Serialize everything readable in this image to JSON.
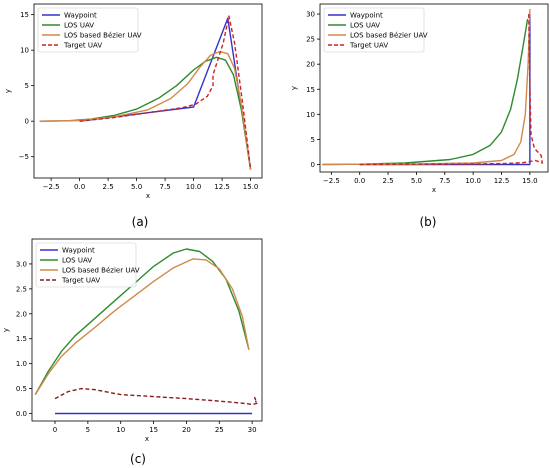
{
  "figure": {
    "subplot_labels": [
      "(a)",
      "(b)",
      "(c)"
    ]
  },
  "chart_data": [
    {
      "type": "line",
      "panel_label": "(a)",
      "xlabel": "x",
      "ylabel": "y",
      "xlim": [
        -4,
        16
      ],
      "ylim": [
        -8,
        16.5
      ],
      "xticks": [
        -2.5,
        0.0,
        2.5,
        5.0,
        7.5,
        10.0,
        12.5,
        15.0
      ],
      "xtick_labels": [
        "−2.5",
        "0.0",
        "2.5",
        "5.0",
        "7.5",
        "10.0",
        "12.5",
        "15.0"
      ],
      "yticks": [
        -5,
        0,
        5,
        10,
        15
      ],
      "ytick_labels": [
        "−5",
        "0",
        "5",
        "10",
        "15"
      ],
      "legend_position": "top-left",
      "grid": false,
      "series": [
        {
          "name": "Waypoint",
          "color": "#3333cc",
          "style": "solid",
          "x": [
            0,
            10,
            13,
            15
          ],
          "y": [
            0,
            2,
            14.5,
            -6.8
          ]
        },
        {
          "name": "LOS UAV",
          "color": "#2e8b2e",
          "style": "solid",
          "x": [
            -3.5,
            -1,
            1,
            3,
            5,
            7,
            8.5,
            10,
            11,
            12,
            12.8,
            13.5,
            14.2,
            15
          ],
          "y": [
            0,
            0.05,
            0.3,
            0.8,
            1.7,
            3.3,
            5,
            7.2,
            8.4,
            9,
            8.6,
            6.5,
            1.5,
            -6.8
          ]
        },
        {
          "name": "LOS based Bézier UAV",
          "color": "#d08a4a",
          "style": "solid",
          "x": [
            -3.5,
            0,
            3,
            6,
            8,
            9.5,
            10.5,
            11.5,
            12.3,
            13,
            13.6,
            14.2,
            15
          ],
          "y": [
            0,
            0.1,
            0.6,
            1.6,
            3.2,
            5.3,
            7.5,
            9.3,
            9.8,
            9.5,
            7.4,
            2.2,
            -6.8
          ]
        },
        {
          "name": "Target UAV",
          "color": "#cc2222",
          "style": "dashed",
          "x": [
            0,
            3,
            6,
            9,
            10.2,
            11.2,
            11.7,
            11.7,
            12.1,
            12.6,
            13.1,
            13.6,
            14.3,
            15
          ],
          "y": [
            0,
            0.5,
            1.2,
            1.9,
            2.4,
            3.5,
            5,
            6.5,
            8.5,
            11,
            14.8,
            11,
            2.5,
            -6.8
          ]
        }
      ]
    },
    {
      "type": "line",
      "panel_label": "(b)",
      "xlabel": "x",
      "ylabel": "y",
      "xlim": [
        -3.5,
        16.6
      ],
      "ylim": [
        -1.5,
        32
      ],
      "xticks": [
        -2.5,
        0.0,
        2.5,
        5.0,
        7.5,
        10.0,
        12.5,
        15.0
      ],
      "xtick_labels": [
        "−2.5",
        "0.0",
        "2.5",
        "5.0",
        "7.5",
        "10.0",
        "12.5",
        "15.0"
      ],
      "yticks": [
        0,
        5,
        10,
        15,
        20,
        25,
        30
      ],
      "ytick_labels": [
        "0",
        "5",
        "10",
        "15",
        "20",
        "25",
        "30"
      ],
      "legend_position": "top-left",
      "grid": false,
      "series": [
        {
          "name": "Waypoint",
          "color": "#3333cc",
          "style": "solid",
          "x": [
            0,
            15,
            15,
            15
          ],
          "y": [
            0,
            0,
            2,
            30
          ]
        },
        {
          "name": "LOS UAV",
          "color": "#2e8b2e",
          "style": "solid",
          "x": [
            -3.3,
            0,
            4,
            8,
            10,
            11.5,
            12.5,
            13.3,
            13.9,
            14.4,
            14.8
          ],
          "y": [
            0,
            0.05,
            0.3,
            1,
            2,
            3.8,
            6.5,
            11,
            17,
            23.5,
            29
          ]
        },
        {
          "name": "LOS based Bézier UAV",
          "color": "#d08a4a",
          "style": "solid",
          "x": [
            -3.3,
            0,
            5,
            10,
            12.5,
            13.6,
            14.2,
            14.6,
            14.85,
            15
          ],
          "y": [
            0,
            0.05,
            0.1,
            0.3,
            0.8,
            2,
            4.5,
            10,
            20,
            31
          ]
        },
        {
          "name": "Target UAV",
          "color": "#cc2222",
          "style": "dashed",
          "x": [
            0,
            5,
            10,
            13,
            14.5,
            15.5,
            16.1,
            16,
            15.4,
            15.1,
            15,
            14.9
          ],
          "y": [
            0,
            0.05,
            0.1,
            0.2,
            0.4,
            0.8,
            0.3,
            1.8,
            3.2,
            6,
            15,
            30.5
          ]
        }
      ]
    },
    {
      "type": "line",
      "panel_label": "(c)",
      "xlabel": "x",
      "ylabel": "y",
      "xlim": [
        -3.5,
        31.5
      ],
      "ylim": [
        -0.15,
        3.5
      ],
      "xticks": [
        0,
        5,
        10,
        15,
        20,
        25,
        30
      ],
      "xtick_labels": [
        "0",
        "5",
        "10",
        "15",
        "20",
        "25",
        "30"
      ],
      "yticks": [
        0.0,
        0.5,
        1.0,
        1.5,
        2.0,
        2.5,
        3.0
      ],
      "ytick_labels": [
        "0.0",
        "0.5",
        "1.0",
        "1.5",
        "2.0",
        "2.5",
        "3.0"
      ],
      "legend_position": "top-left",
      "grid": false,
      "series": [
        {
          "name": "Waypoint",
          "color": "#3333cc",
          "style": "solid",
          "x": [
            0,
            30
          ],
          "y": [
            0,
            0
          ]
        },
        {
          "name": "LOS UAV",
          "color": "#2e8b2e",
          "style": "solid",
          "x": [
            -3,
            -1,
            1,
            3,
            6,
            9,
            12,
            15,
            18,
            20,
            22,
            24,
            26,
            28,
            29.5
          ],
          "y": [
            0.38,
            0.85,
            1.25,
            1.55,
            1.9,
            2.25,
            2.6,
            2.95,
            3.22,
            3.3,
            3.25,
            3.05,
            2.7,
            2.05,
            1.28
          ]
        },
        {
          "name": "LOS based Bézier UAV",
          "color": "#d08a4a",
          "style": "solid",
          "x": [
            -3,
            -1,
            1,
            3,
            6,
            9,
            12,
            15,
            18,
            21,
            23,
            25,
            27,
            28.5,
            29.5
          ],
          "y": [
            0.38,
            0.8,
            1.15,
            1.4,
            1.72,
            2.05,
            2.35,
            2.65,
            2.92,
            3.1,
            3.08,
            2.9,
            2.5,
            1.95,
            1.28
          ]
        },
        {
          "name": "Target UAV",
          "color": "#8b1a1a",
          "style": "dashed",
          "x": [
            0,
            2,
            4,
            6,
            8,
            10,
            15,
            20,
            25,
            29,
            30,
            30.7,
            30.4,
            30.6
          ],
          "y": [
            0.3,
            0.44,
            0.5,
            0.48,
            0.43,
            0.38,
            0.34,
            0.3,
            0.25,
            0.2,
            0.18,
            0.2,
            0.32,
            0.22
          ]
        }
      ]
    }
  ]
}
